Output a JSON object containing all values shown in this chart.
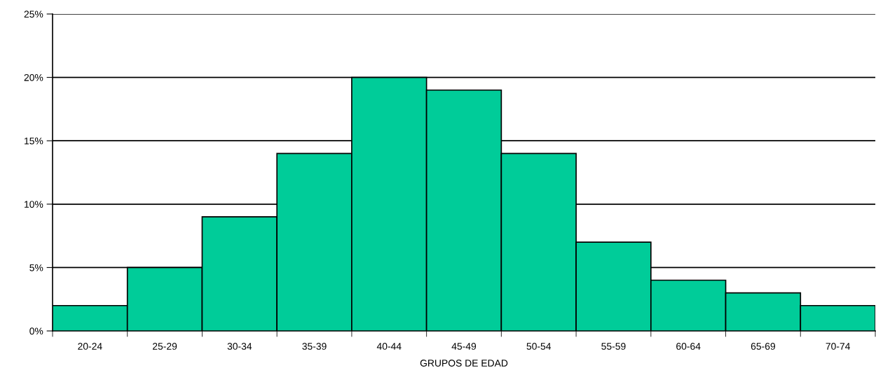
{
  "chart_data": {
    "type": "bar",
    "xlabel": "GRUPOS DE EDAD",
    "categories": [
      "20-24",
      "25-29",
      "30-34",
      "35-39",
      "40-44",
      "45-49",
      "50-54",
      "55-59",
      "60-64",
      "65-69",
      "70-74"
    ],
    "values": [
      2,
      5,
      9,
      14,
      20,
      19,
      14,
      7,
      4,
      3,
      2
    ],
    "color": "#00cc99",
    "ylim": [
      0,
      25
    ],
    "yticks": [
      {
        "value": 0,
        "label": "0%"
      },
      {
        "value": 5,
        "label": "5%"
      },
      {
        "value": 10,
        "label": "10%"
      },
      {
        "value": 15,
        "label": "15%"
      },
      {
        "value": 20,
        "label": "20%"
      },
      {
        "value": 25,
        "label": "25%"
      }
    ],
    "grid": "y"
  }
}
